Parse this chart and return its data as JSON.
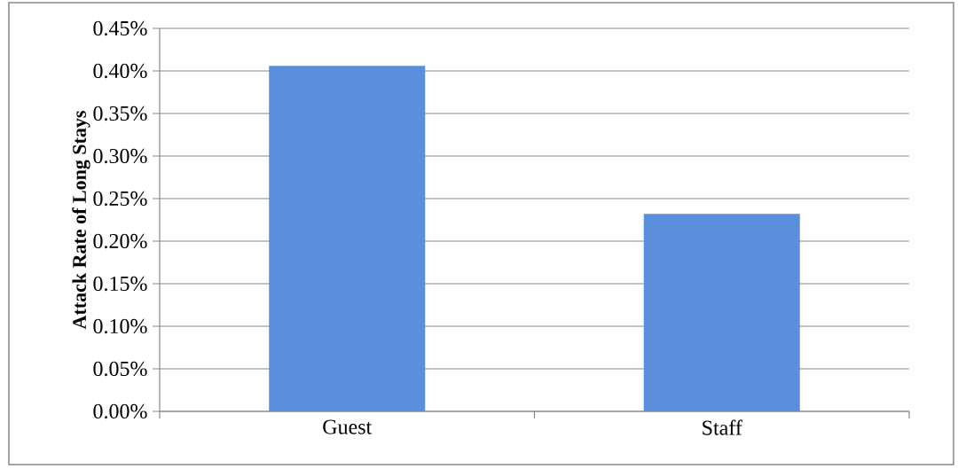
{
  "chart_data": {
    "type": "bar",
    "ylabel": "Attack Rate of Long Stays",
    "categories": [
      "Guest",
      "Staff"
    ],
    "values": [
      0.406,
      0.232
    ],
    "color": "#5b8fdd",
    "ylim": [
      0,
      0.45
    ],
    "yticks": [
      {
        "value": 0,
        "label": "0.00%"
      },
      {
        "value": 0.05,
        "label": "0.05%"
      },
      {
        "value": 0.1,
        "label": "0.10%"
      },
      {
        "value": 0.15,
        "label": "0.15%"
      },
      {
        "value": 0.2,
        "label": "0.20%"
      },
      {
        "value": 0.25,
        "label": "0.25%"
      },
      {
        "value": 0.3,
        "label": "0.30%"
      },
      {
        "value": 0.35,
        "label": "0.35%"
      },
      {
        "value": 0.4,
        "label": "0.40%"
      },
      {
        "value": 0.45,
        "label": "0.45%"
      }
    ],
    "grid": "y"
  }
}
